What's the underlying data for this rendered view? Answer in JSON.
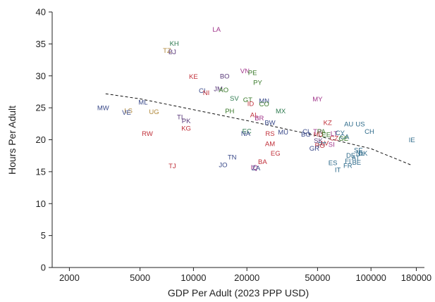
{
  "chart_data": {
    "type": "scatter",
    "xlabel": "GDP Per Adult (2023 PPP USD)",
    "ylabel": "Hours Per Adult",
    "x_scale": "log",
    "xlim": [
      1600,
      200000
    ],
    "ylim": [
      0,
      40
    ],
    "x_ticks": [
      2000,
      5000,
      10000,
      20000,
      50000,
      100000,
      180000
    ],
    "x_tick_labels": [
      "2000",
      "5000",
      "10000",
      "20000",
      "50000",
      "100000",
      "180000"
    ],
    "y_ticks": [
      0,
      5,
      10,
      15,
      20,
      25,
      30,
      35,
      40
    ],
    "y_tick_labels": [
      "0",
      "5",
      "10",
      "15",
      "20",
      "25",
      "30",
      "35",
      "40"
    ],
    "grid": false,
    "fit_line": {
      "style": "dashed",
      "points": [
        [
          3200,
          27.2
        ],
        [
          5000,
          26.4
        ],
        [
          10000,
          24.7
        ],
        [
          20000,
          23.0
        ],
        [
          50000,
          20.6
        ],
        [
          100000,
          18.6
        ],
        [
          170000,
          16.0
        ]
      ]
    },
    "points": [
      {
        "label": "LA",
        "x": 13500,
        "y": 37.3,
        "color": "#a0348a"
      },
      {
        "label": "KH",
        "x": 7800,
        "y": 35.1,
        "color": "#2d7a4f"
      },
      {
        "label": "TZ",
        "x": 7100,
        "y": 34.0,
        "color": "#b0883a"
      },
      {
        "label": "BJ",
        "x": 7600,
        "y": 33.8,
        "color": "#5a3a7a"
      },
      {
        "label": "VN",
        "x": 19500,
        "y": 30.8,
        "color": "#a0348a"
      },
      {
        "label": "PE",
        "x": 21500,
        "y": 30.5,
        "color": "#3a7a2a"
      },
      {
        "label": "BO",
        "x": 15000,
        "y": 30.0,
        "color": "#5a3a7a"
      },
      {
        "label": "KE",
        "x": 10000,
        "y": 29.9,
        "color": "#c0303a"
      },
      {
        "label": "PY",
        "x": 23000,
        "y": 29.0,
        "color": "#3a7a2a"
      },
      {
        "label": "JM",
        "x": 13800,
        "y": 28.0,
        "color": "#5a3a7a"
      },
      {
        "label": "AO",
        "x": 14800,
        "y": 27.8,
        "color": "#3a7a2a"
      },
      {
        "label": "CI",
        "x": 11200,
        "y": 27.7,
        "color": "#3a4a8a"
      },
      {
        "label": "NI",
        "x": 11800,
        "y": 27.4,
        "color": "#c0303a"
      },
      {
        "label": "SV",
        "x": 17000,
        "y": 26.5,
        "color": "#2d7a4f"
      },
      {
        "label": "GT",
        "x": 20200,
        "y": 26.3,
        "color": "#3a7a2a"
      },
      {
        "label": "MN",
        "x": 25000,
        "y": 26.1,
        "color": "#3a4a8a"
      },
      {
        "label": "ID",
        "x": 21000,
        "y": 25.7,
        "color": "#c0303a"
      },
      {
        "label": "CO",
        "x": 25000,
        "y": 25.6,
        "color": "#3a7a2a"
      },
      {
        "label": "MY",
        "x": 50000,
        "y": 26.4,
        "color": "#a0348a"
      },
      {
        "label": "ML",
        "x": 5200,
        "y": 25.9,
        "color": "#3a4a8a"
      },
      {
        "label": "MW",
        "x": 3100,
        "y": 25.0,
        "color": "#3a4a8a"
      },
      {
        "label": "LS",
        "x": 4300,
        "y": 24.6,
        "color": "#b0883a"
      },
      {
        "label": "VE",
        "x": 4200,
        "y": 24.3,
        "color": "#3a4a8a"
      },
      {
        "label": "UG",
        "x": 6000,
        "y": 24.4,
        "color": "#b0883a"
      },
      {
        "label": "PH",
        "x": 16000,
        "y": 24.5,
        "color": "#3a7a2a"
      },
      {
        "label": "MX",
        "x": 31000,
        "y": 24.5,
        "color": "#2d7a4f"
      },
      {
        "label": "AL",
        "x": 22000,
        "y": 23.9,
        "color": "#c0303a"
      },
      {
        "label": "BR",
        "x": 23500,
        "y": 23.4,
        "color": "#a0348a"
      },
      {
        "label": "TL",
        "x": 8500,
        "y": 23.6,
        "color": "#5a3a7a"
      },
      {
        "label": "PK",
        "x": 9100,
        "y": 23.0,
        "color": "#5a3a7a"
      },
      {
        "label": "BW",
        "x": 27000,
        "y": 22.7,
        "color": "#3a4a8a"
      },
      {
        "label": "KZ",
        "x": 57000,
        "y": 22.7,
        "color": "#c0303a"
      },
      {
        "label": "AU",
        "x": 75000,
        "y": 22.5,
        "color": "#2d6a8a"
      },
      {
        "label": "US",
        "x": 87000,
        "y": 22.5,
        "color": "#2d6a8a"
      },
      {
        "label": "KG",
        "x": 9100,
        "y": 21.8,
        "color": "#c0303a"
      },
      {
        "label": "EC",
        "x": 20000,
        "y": 21.4,
        "color": "#2d7a4f"
      },
      {
        "label": "NA",
        "x": 19700,
        "y": 21.0,
        "color": "#3a4a8a"
      },
      {
        "label": "RS",
        "x": 27000,
        "y": 21.0,
        "color": "#c0303a"
      },
      {
        "label": "MU",
        "x": 32000,
        "y": 21.2,
        "color": "#3a4a8a"
      },
      {
        "label": "CL",
        "x": 43500,
        "y": 21.3,
        "color": "#3a4a8a"
      },
      {
        "label": "TR",
        "x": 50000,
        "y": 21.3,
        "color": "#a0348a"
      },
      {
        "label": "PA",
        "x": 52500,
        "y": 21.3,
        "color": "#3a7a2a"
      },
      {
        "label": "BG",
        "x": 43000,
        "y": 20.9,
        "color": "#3a4a8a"
      },
      {
        "label": "HU",
        "x": 50500,
        "y": 20.9,
        "color": "#c0303a"
      },
      {
        "label": "EE",
        "x": 56000,
        "y": 20.8,
        "color": "#3a7a2a"
      },
      {
        "label": "LT",
        "x": 62000,
        "y": 21.0,
        "color": "#a0348a"
      },
      {
        "label": "CY",
        "x": 67000,
        "y": 21.1,
        "color": "#2d6a8a"
      },
      {
        "label": "CH",
        "x": 98000,
        "y": 21.3,
        "color": "#2d6a8a"
      },
      {
        "label": "RW",
        "x": 5500,
        "y": 21.0,
        "color": "#c0303a"
      },
      {
        "label": "CA",
        "x": 71000,
        "y": 20.5,
        "color": "#2d6a8a"
      },
      {
        "label": "GE",
        "x": 70000,
        "y": 20.2,
        "color": "#3a7a2a"
      },
      {
        "label": "CZ",
        "x": 62000,
        "y": 20.3,
        "color": "#c0303a"
      },
      {
        "label": "SK",
        "x": 50500,
        "y": 19.9,
        "color": "#5a3a7a"
      },
      {
        "label": "LV",
        "x": 55000,
        "y": 19.5,
        "color": "#c0303a"
      },
      {
        "label": "PT",
        "x": 53000,
        "y": 19.3,
        "color": "#2d6a8a"
      },
      {
        "label": "RO",
        "x": 51500,
        "y": 19.1,
        "color": "#c0303a"
      },
      {
        "label": "SI",
        "x": 60000,
        "y": 19.3,
        "color": "#a0348a"
      },
      {
        "label": "AM",
        "x": 27000,
        "y": 19.4,
        "color": "#c0303a"
      },
      {
        "label": "IE",
        "x": 170000,
        "y": 20.0,
        "color": "#2d6a8a"
      },
      {
        "label": "GR",
        "x": 48000,
        "y": 18.7,
        "color": "#3a4a8a"
      },
      {
        "label": "SE",
        "x": 85000,
        "y": 18.4,
        "color": "#2d6a8a"
      },
      {
        "label": "NL",
        "x": 87000,
        "y": 17.9,
        "color": "#2d6a8a"
      },
      {
        "label": "DK",
        "x": 90000,
        "y": 17.9,
        "color": "#2d6a8a"
      },
      {
        "label": "DE",
        "x": 77000,
        "y": 17.6,
        "color": "#2d6a8a"
      },
      {
        "label": "AT",
        "x": 82000,
        "y": 17.2,
        "color": "#2d6a8a"
      },
      {
        "label": "EG",
        "x": 29000,
        "y": 17.9,
        "color": "#c0303a"
      },
      {
        "label": "TN",
        "x": 16500,
        "y": 17.3,
        "color": "#3a4a8a"
      },
      {
        "label": "FI",
        "x": 74000,
        "y": 16.7,
        "color": "#2d6a8a"
      },
      {
        "label": "BE",
        "x": 83000,
        "y": 16.5,
        "color": "#2d6a8a"
      },
      {
        "label": "ES",
        "x": 61000,
        "y": 16.4,
        "color": "#2d6a8a"
      },
      {
        "label": "BA",
        "x": 24500,
        "y": 16.6,
        "color": "#c0303a"
      },
      {
        "label": "FR",
        "x": 74000,
        "y": 16.0,
        "color": "#2d6a8a"
      },
      {
        "label": "JO",
        "x": 14700,
        "y": 16.1,
        "color": "#3a4a8a"
      },
      {
        "label": "TJ",
        "x": 7600,
        "y": 15.9,
        "color": "#c0303a"
      },
      {
        "label": "IQ",
        "x": 22000,
        "y": 15.7,
        "color": "#a0348a"
      },
      {
        "label": "ZA",
        "x": 22500,
        "y": 15.6,
        "color": "#3a4a8a"
      },
      {
        "label": "IT",
        "x": 65000,
        "y": 15.3,
        "color": "#2d6a8a"
      }
    ]
  }
}
